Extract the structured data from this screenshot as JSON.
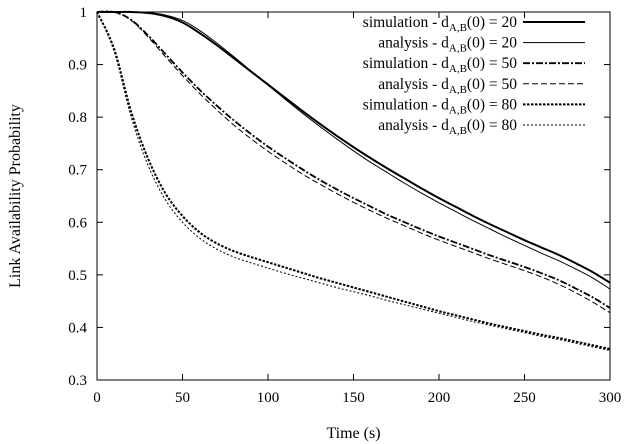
{
  "chart_data": {
    "type": "line",
    "xlabel": "Time (s)",
    "ylabel": "Link Availability Probability",
    "xlim": [
      0,
      300
    ],
    "ylim": [
      0.3,
      1.0
    ],
    "xticks": [
      "0",
      "50",
      "100",
      "150",
      "200",
      "250",
      "300"
    ],
    "yticks": [
      "0.3",
      "0.4",
      "0.5",
      "0.6",
      "0.7",
      "0.8",
      "0.9",
      "1"
    ],
    "grid": false,
    "legend_position": "top-right",
    "legend_subscript": "A,B",
    "x": [
      0,
      10,
      20,
      30,
      40,
      50,
      60,
      70,
      80,
      90,
      100,
      110,
      120,
      130,
      140,
      150,
      160,
      170,
      180,
      190,
      200,
      210,
      220,
      230,
      240,
      250,
      260,
      270,
      280,
      290,
      300
    ],
    "series": [
      {
        "name": "simulation - d(0) = 20",
        "legend_prefix": "simulation - d",
        "legend_suffix": "(0) = 20",
        "style": "solid-thick",
        "values": [
          1.0,
          1.0,
          1.0,
          0.998,
          0.992,
          0.98,
          0.96,
          0.937,
          0.912,
          0.887,
          0.862,
          0.837,
          0.812,
          0.788,
          0.765,
          0.743,
          0.722,
          0.702,
          0.683,
          0.664,
          0.646,
          0.629,
          0.612,
          0.596,
          0.581,
          0.566,
          0.552,
          0.538,
          0.522,
          0.505,
          0.485
        ]
      },
      {
        "name": "analysis - d(0) = 20",
        "legend_prefix": "analysis - d",
        "legend_suffix": "(0) = 20",
        "style": "solid-thin",
        "values": [
          1.0,
          1.0,
          1.0,
          0.999,
          0.994,
          0.984,
          0.965,
          0.941,
          0.915,
          0.888,
          0.861,
          0.834,
          0.808,
          0.783,
          0.759,
          0.736,
          0.714,
          0.694,
          0.674,
          0.655,
          0.637,
          0.62,
          0.603,
          0.587,
          0.571,
          0.556,
          0.541,
          0.527,
          0.511,
          0.494,
          0.473
        ]
      },
      {
        "name": "simulation - d(0) = 50",
        "legend_prefix": "simulation - d",
        "legend_suffix": "(0) = 50",
        "style": "dashdot",
        "values": [
          1.0,
          1.0,
          0.985,
          0.955,
          0.92,
          0.885,
          0.852,
          0.822,
          0.794,
          0.768,
          0.744,
          0.722,
          0.701,
          0.681,
          0.663,
          0.646,
          0.63,
          0.614,
          0.6,
          0.586,
          0.573,
          0.561,
          0.549,
          0.537,
          0.526,
          0.515,
          0.503,
          0.49,
          0.474,
          0.457,
          0.437
        ]
      },
      {
        "name": "analysis - d(0) = 50",
        "legend_prefix": "analysis - d",
        "legend_suffix": "(0) = 50",
        "style": "dashed-thin",
        "values": [
          1.0,
          1.0,
          0.984,
          0.952,
          0.915,
          0.879,
          0.845,
          0.814,
          0.785,
          0.759,
          0.735,
          0.713,
          0.692,
          0.673,
          0.655,
          0.638,
          0.622,
          0.607,
          0.593,
          0.579,
          0.566,
          0.554,
          0.542,
          0.53,
          0.519,
          0.508,
          0.496,
          0.482,
          0.466,
          0.448,
          0.428
        ]
      },
      {
        "name": "simulation - d(0) = 80",
        "legend_prefix": "simulation - d",
        "legend_suffix": "(0) = 80",
        "style": "dotted-thick",
        "values": [
          1.0,
          0.93,
          0.81,
          0.72,
          0.655,
          0.612,
          0.581,
          0.56,
          0.545,
          0.534,
          0.524,
          0.514,
          0.504,
          0.494,
          0.485,
          0.476,
          0.467,
          0.458,
          0.449,
          0.44,
          0.431,
          0.423,
          0.415,
          0.407,
          0.4,
          0.393,
          0.386,
          0.38,
          0.373,
          0.366,
          0.359
        ]
      },
      {
        "name": "analysis - d(0) = 80",
        "legend_prefix": "analysis - d",
        "legend_suffix": "(0) = 80",
        "style": "dotted-thin",
        "values": [
          1.0,
          0.925,
          0.8,
          0.707,
          0.643,
          0.6,
          0.57,
          0.549,
          0.534,
          0.523,
          0.513,
          0.503,
          0.494,
          0.485,
          0.476,
          0.468,
          0.46,
          0.451,
          0.443,
          0.435,
          0.427,
          0.419,
          0.411,
          0.404,
          0.397,
          0.39,
          0.383,
          0.377,
          0.37,
          0.363,
          0.356
        ]
      }
    ]
  }
}
